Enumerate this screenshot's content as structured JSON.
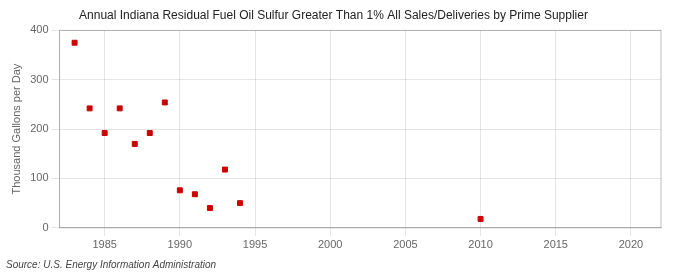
{
  "chart_data": {
    "type": "scatter",
    "title": "Annual Indiana Residual Fuel Oil Sulfur Greater Than 1% All Sales/Deliveries by Prime Supplier",
    "ylabel": "Thousand Gallons per Day",
    "source": "Source: U.S. Energy Information Administration",
    "x": [
      1983,
      1984,
      1985,
      1986,
      1987,
      1988,
      1989,
      1990,
      1991,
      1992,
      1993,
      1994,
      2010
    ],
    "values": [
      375,
      242,
      192,
      242,
      170,
      192,
      254,
      76,
      68,
      40,
      118,
      50,
      18
    ],
    "xlim": [
      1982,
      2022
    ],
    "ylim": [
      0,
      400
    ],
    "xticks": [
      1985,
      1990,
      1995,
      2000,
      2005,
      2010,
      2015,
      2020
    ],
    "yticks": [
      0,
      100,
      200,
      300,
      400
    ],
    "color": "#cc0000",
    "marker": "square",
    "grid": true
  }
}
